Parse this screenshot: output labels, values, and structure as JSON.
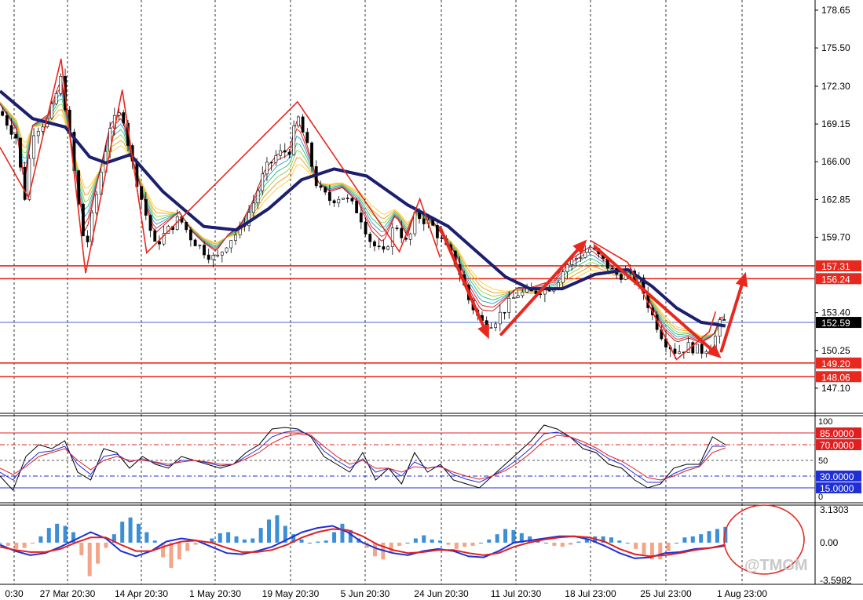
{
  "watermark": "@TMGM",
  "colors": {
    "bull_candle": "#000000",
    "bear_candle": "#5a6b3a",
    "ema_slow": "#1b1f6e",
    "annotation": "#e8281e",
    "price_line": "#2b54c8",
    "macd_pos": "#3a8fd6",
    "macd_neg": "#f3a58a",
    "rsi_k": "#000000",
    "rsi_d": "#1f2fd6",
    "rsi_s": "#e02020"
  },
  "chart_data": [
    {
      "type": "candlestick",
      "panel": "price",
      "x_ticks": [
        "0:30",
        "27 Mar 20:30",
        "14 Apr 20:30",
        "1 May 20:30",
        "19 May 20:30",
        "5 Jun 20:30",
        "24 Jun 20:30",
        "11 Jul 20:30",
        "18 Jul 23:00",
        "25 Jul 23:00",
        "1 Aug 23:00"
      ],
      "y_ticks": [
        "178.65",
        "175.50",
        "172.30",
        "169.15",
        "166.00",
        "162.85",
        "159.70",
        "153.40",
        "150.25",
        "147.10"
      ],
      "ylim": [
        145.0,
        179.5
      ],
      "horizontal_levels": [
        {
          "label": "157.31",
          "value": 157.31
        },
        {
          "label": "156.24",
          "value": 156.24
        },
        {
          "label": "149.20",
          "value": 149.2
        },
        {
          "label": "148.06",
          "value": 148.06
        }
      ],
      "current_price": {
        "label": "152.59",
        "value": 152.59
      },
      "close_series": [
        {
          "x": 0.0,
          "y": 170.2
        },
        {
          "x": 0.02,
          "y": 168.0
        },
        {
          "x": 0.03,
          "y": 162.8
        },
        {
          "x": 0.04,
          "y": 168.5
        },
        {
          "x": 0.06,
          "y": 169.6
        },
        {
          "x": 0.075,
          "y": 173.0
        },
        {
          "x": 0.085,
          "y": 168.4
        },
        {
          "x": 0.095,
          "y": 163.0
        },
        {
          "x": 0.105,
          "y": 158.5
        },
        {
          "x": 0.12,
          "y": 163.8
        },
        {
          "x": 0.135,
          "y": 169.0
        },
        {
          "x": 0.15,
          "y": 170.2
        },
        {
          "x": 0.16,
          "y": 166.5
        },
        {
          "x": 0.175,
          "y": 162.5
        },
        {
          "x": 0.19,
          "y": 159.0
        },
        {
          "x": 0.205,
          "y": 160.2
        },
        {
          "x": 0.22,
          "y": 161.3
        },
        {
          "x": 0.235,
          "y": 159.6
        },
        {
          "x": 0.25,
          "y": 158.6
        },
        {
          "x": 0.265,
          "y": 157.8
        },
        {
          "x": 0.28,
          "y": 159.4
        },
        {
          "x": 0.295,
          "y": 160.3
        },
        {
          "x": 0.31,
          "y": 162.4
        },
        {
          "x": 0.325,
          "y": 165.3
        },
        {
          "x": 0.34,
          "y": 166.6
        },
        {
          "x": 0.355,
          "y": 167.0
        },
        {
          "x": 0.365,
          "y": 169.8
        },
        {
          "x": 0.375,
          "y": 167.7
        },
        {
          "x": 0.39,
          "y": 163.7
        },
        {
          "x": 0.405,
          "y": 162.8
        },
        {
          "x": 0.42,
          "y": 163.2
        },
        {
          "x": 0.44,
          "y": 161.8
        },
        {
          "x": 0.455,
          "y": 159.3
        },
        {
          "x": 0.47,
          "y": 158.2
        },
        {
          "x": 0.485,
          "y": 160.9
        },
        {
          "x": 0.5,
          "y": 159.0
        },
        {
          "x": 0.51,
          "y": 161.6
        },
        {
          "x": 0.53,
          "y": 160.7
        },
        {
          "x": 0.545,
          "y": 159.0
        },
        {
          "x": 0.56,
          "y": 157.5
        },
        {
          "x": 0.575,
          "y": 154.5
        },
        {
          "x": 0.59,
          "y": 152.6
        },
        {
          "x": 0.605,
          "y": 152.6
        },
        {
          "x": 0.62,
          "y": 153.8
        },
        {
          "x": 0.635,
          "y": 155.0
        },
        {
          "x": 0.65,
          "y": 155.0
        },
        {
          "x": 0.665,
          "y": 155.4
        },
        {
          "x": 0.68,
          "y": 155.7
        },
        {
          "x": 0.695,
          "y": 157.4
        },
        {
          "x": 0.71,
          "y": 158.1
        },
        {
          "x": 0.725,
          "y": 158.8
        },
        {
          "x": 0.74,
          "y": 157.7
        },
        {
          "x": 0.755,
          "y": 156.6
        },
        {
          "x": 0.77,
          "y": 156.6
        },
        {
          "x": 0.785,
          "y": 155.9
        },
        {
          "x": 0.8,
          "y": 153.2
        },
        {
          "x": 0.815,
          "y": 151.1
        },
        {
          "x": 0.83,
          "y": 150.1
        },
        {
          "x": 0.845,
          "y": 150.6
        },
        {
          "x": 0.86,
          "y": 150.2
        },
        {
          "x": 0.875,
          "y": 150.9
        },
        {
          "x": 0.885,
          "y": 152.8
        },
        {
          "x": 0.89,
          "y": 152.6
        }
      ],
      "ema_slow": [
        {
          "x": 0.0,
          "y": 171.9
        },
        {
          "x": 0.04,
          "y": 169.6
        },
        {
          "x": 0.08,
          "y": 168.9
        },
        {
          "x": 0.11,
          "y": 166.4
        },
        {
          "x": 0.13,
          "y": 165.9
        },
        {
          "x": 0.16,
          "y": 166.6
        },
        {
          "x": 0.2,
          "y": 163.5
        },
        {
          "x": 0.25,
          "y": 160.6
        },
        {
          "x": 0.29,
          "y": 160.3
        },
        {
          "x": 0.33,
          "y": 162.1
        },
        {
          "x": 0.37,
          "y": 164.5
        },
        {
          "x": 0.41,
          "y": 165.4
        },
        {
          "x": 0.45,
          "y": 164.8
        },
        {
          "x": 0.5,
          "y": 162.4
        },
        {
          "x": 0.55,
          "y": 160.6
        },
        {
          "x": 0.58,
          "y": 158.8
        },
        {
          "x": 0.62,
          "y": 156.4
        },
        {
          "x": 0.65,
          "y": 155.4
        },
        {
          "x": 0.69,
          "y": 155.4
        },
        {
          "x": 0.73,
          "y": 156.6
        },
        {
          "x": 0.77,
          "y": 157.0
        },
        {
          "x": 0.8,
          "y": 155.6
        },
        {
          "x": 0.83,
          "y": 153.8
        },
        {
          "x": 0.86,
          "y": 152.6
        },
        {
          "x": 0.89,
          "y": 152.3
        }
      ],
      "zigzag": [
        {
          "x": 0.0,
          "y": 167.2
        },
        {
          "x": 0.035,
          "y": 163.0
        },
        {
          "x": 0.075,
          "y": 174.6
        },
        {
          "x": 0.105,
          "y": 156.7
        },
        {
          "x": 0.15,
          "y": 172.0
        },
        {
          "x": 0.18,
          "y": 158.4
        },
        {
          "x": 0.365,
          "y": 171.0
        },
        {
          "x": 0.49,
          "y": 158.5
        },
        {
          "x": 0.515,
          "y": 162.9
        },
        {
          "x": 0.54,
          "y": 158.0
        }
      ],
      "zigzag2": [
        {
          "x": 0.725,
          "y": 159.4
        },
        {
          "x": 0.77,
          "y": 157.6
        },
        {
          "x": 0.83,
          "y": 149.5
        },
        {
          "x": 0.87,
          "y": 151.8
        },
        {
          "x": 0.878,
          "y": 153.5
        }
      ],
      "arrows": [
        {
          "from": {
            "x": 0.54,
            "y": 160.5
          },
          "to": {
            "x": 0.6,
            "y": 151.2
          }
        },
        {
          "from": {
            "x": 0.615,
            "y": 151.6
          },
          "to": {
            "x": 0.72,
            "y": 159.5
          }
        },
        {
          "from": {
            "x": 0.73,
            "y": 158.9
          },
          "to": {
            "x": 0.885,
            "y": 149.6
          }
        },
        {
          "from": {
            "x": 0.885,
            "y": 150.2
          },
          "to": {
            "x": 0.915,
            "y": 156.8
          }
        }
      ],
      "gradient_bands": [
        {
          "offset": -1.0,
          "color": "#ffd23a"
        },
        {
          "offset": -0.6,
          "color": "#f6a02c"
        },
        {
          "offset": -0.2,
          "color": "#9ad65a"
        },
        {
          "offset": 0.2,
          "color": "#3fbf82"
        },
        {
          "offset": 0.6,
          "color": "#3aa5d8"
        },
        {
          "offset": 1.0,
          "color": "#e0342a"
        },
        {
          "offset": 1.4,
          "color": "#c01828"
        }
      ]
    },
    {
      "type": "line",
      "panel": "stochastic",
      "y_ticks": [
        "100",
        "85.0000",
        "70.0000",
        "50",
        "30.0000",
        "15.0000",
        "0"
      ],
      "ylim": [
        0,
        100
      ],
      "levels": [
        {
          "label": "85.0000",
          "value": 85
        },
        {
          "label": "70.0000",
          "value": 70
        },
        {
          "label": "50",
          "value": 50
        },
        {
          "label": "30.0000",
          "value": 30
        },
        {
          "label": "15.0000",
          "value": 15
        }
      ],
      "series": [
        {
          "key": "k",
          "values": [
            30,
            12,
            55,
            70,
            65,
            75,
            35,
            25,
            65,
            60,
            40,
            55,
            45,
            40,
            55,
            50,
            45,
            40,
            45,
            60,
            70,
            90,
            92,
            90,
            80,
            55,
            45,
            35,
            60,
            25,
            40,
            20,
            60,
            35,
            45,
            25,
            20,
            15,
            30,
            45,
            60,
            75,
            95,
            90,
            80,
            65,
            60,
            45,
            40,
            25,
            15,
            20,
            40,
            45,
            45,
            80,
            70
          ]
        },
        {
          "key": "d",
          "values": [
            35,
            25,
            45,
            60,
            62,
            68,
            45,
            32,
            55,
            58,
            48,
            52,
            47,
            43,
            50,
            50,
            47,
            43,
            45,
            55,
            65,
            80,
            86,
            88,
            82,
            62,
            50,
            40,
            52,
            35,
            40,
            30,
            48,
            40,
            43,
            32,
            26,
            22,
            30,
            40,
            52,
            66,
            84,
            86,
            80,
            70,
            63,
            52,
            45,
            33,
            22,
            22,
            33,
            40,
            43,
            68,
            68
          ]
        },
        {
          "key": "s",
          "values": [
            40,
            32,
            42,
            55,
            60,
            65,
            50,
            38,
            50,
            55,
            50,
            50,
            48,
            45,
            48,
            50,
            48,
            45,
            45,
            52,
            60,
            72,
            80,
            84,
            82,
            68,
            55,
            45,
            50,
            40,
            40,
            35,
            42,
            40,
            42,
            35,
            30,
            26,
            30,
            37,
            47,
            60,
            75,
            82,
            80,
            74,
            66,
            56,
            49,
            39,
            28,
            25,
            30,
            37,
            42,
            60,
            66
          ]
        }
      ]
    },
    {
      "type": "bar",
      "panel": "macd",
      "y_ticks": [
        "3.1303",
        "0.00",
        "-3.5982"
      ],
      "ylim": [
        -3.5982,
        3.1303
      ],
      "histogram": [
        0.0,
        -0.3,
        -0.6,
        -0.5,
        -0.1,
        0.6,
        1.4,
        1.8,
        1.6,
        1.0,
        -1.2,
        -3.2,
        -2.0,
        -0.5,
        0.8,
        2.0,
        2.4,
        1.8,
        1.0,
        0.2,
        -1.4,
        -2.4,
        -1.6,
        -0.8,
        -0.2,
        0.0,
        0.4,
        0.9,
        1.0,
        0.6,
        0.3,
        0.4,
        1.4,
        2.2,
        2.6,
        1.6,
        0.8,
        0.3,
        0.0,
        0.1,
        0.2,
        1.0,
        1.8,
        1.2,
        0.4,
        -0.5,
        -1.3,
        -1.6,
        -1.0,
        -0.3,
        0.0,
        0.4,
        0.7,
        0.3,
        0.2,
        -0.2,
        -0.6,
        -0.4,
        -0.3,
        0.0,
        0.3,
        0.8,
        1.3,
        1.2,
        0.9,
        0.6,
        0.2,
        0.0,
        -0.3,
        -0.4,
        -0.2,
        0.1,
        0.3,
        0.6,
        0.6,
        0.5,
        0.2,
        0.0,
        -0.6,
        -1.1,
        -1.6,
        -1.6,
        -0.8,
        0.0,
        0.5,
        0.6,
        0.8,
        1.1,
        1.3,
        1.5
      ],
      "signal_lines": [
        {
          "key": "macd_line",
          "values": [
            -0.2,
            -0.8,
            -1.2,
            -1.0,
            -0.4,
            0.3,
            1.0,
            0.4,
            -0.8,
            -1.3,
            -0.8,
            0.1,
            0.4,
            0.2,
            -0.4,
            -1.0,
            -1.1,
            -0.8,
            -0.4,
            0.3,
            1.0,
            1.4,
            1.6,
            1.0,
            0.0,
            -0.6,
            -1.0,
            -1.2,
            -0.8,
            -0.6,
            -0.8,
            -1.3,
            -1.4,
            -0.8,
            0.0,
            0.2,
            0.4,
            0.6,
            0.6,
            0.3,
            -0.3,
            -1.0,
            -1.5,
            -1.4,
            -1.0,
            -0.9,
            -0.6,
            -0.5,
            -0.3
          ]
        },
        {
          "key": "signal_line",
          "values": [
            -0.4,
            -0.7,
            -0.9,
            -0.9,
            -0.6,
            0.0,
            0.5,
            0.5,
            -0.2,
            -0.8,
            -0.8,
            -0.3,
            0.1,
            0.2,
            0.0,
            -0.5,
            -0.9,
            -0.9,
            -0.7,
            -0.2,
            0.5,
            1.0,
            1.3,
            1.2,
            0.6,
            -0.2,
            -0.7,
            -1.0,
            -0.9,
            -0.7,
            -0.7,
            -1.0,
            -1.2,
            -1.0,
            -0.4,
            0.0,
            0.3,
            0.5,
            0.6,
            0.5,
            0.1,
            -0.6,
            -1.1,
            -1.3,
            -1.2,
            -1.0,
            -0.7,
            -0.5,
            -0.2
          ]
        }
      ]
    }
  ]
}
